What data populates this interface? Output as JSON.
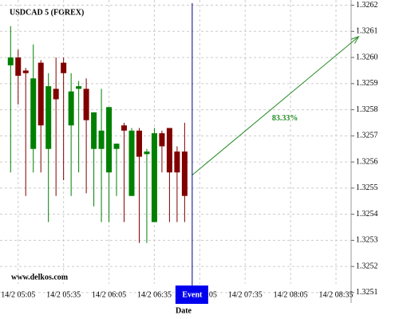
{
  "chart_data": {
    "type": "candlestick",
    "title": "USDCAD 5 (FOREX)",
    "watermark": "www.delkos.com",
    "x_label": "Date",
    "x": [
      "14/2 05:00",
      "14/2 05:05",
      "14/2 05:10",
      "14/2 05:15",
      "14/2 05:20",
      "14/2 05:25",
      "14/2 05:30",
      "14/2 05:35",
      "14/2 05:40",
      "14/2 05:45",
      "14/2 05:50",
      "14/2 05:55",
      "14/2 06:00",
      "14/2 06:05",
      "14/2 06:10",
      "14/2 06:15",
      "14/2 06:20",
      "14/2 06:25",
      "14/2 06:30",
      "14/2 06:35",
      "14/2 06:40",
      "14/2 06:45",
      "14/2 06:50",
      "14/2 06:55"
    ],
    "open": [
      1.32597,
      1.326,
      1.32595,
      1.32565,
      1.32598,
      1.32565,
      1.32588,
      1.32598,
      1.32574,
      1.32588,
      1.32588,
      1.32565,
      1.32565,
      1.32556,
      1.32565,
      1.32574,
      1.32547,
      1.32572,
      1.32563,
      1.32537,
      1.32571,
      1.32573,
      1.32564,
      1.32564
    ],
    "high": [
      1.32612,
      1.32603,
      1.32596,
      1.32605,
      1.32599,
      1.32594,
      1.326,
      1.326,
      1.32594,
      1.32591,
      1.32592,
      1.32579,
      1.32588,
      1.32581,
      1.32567,
      1.32575,
      1.32573,
      1.32573,
      1.32565,
      1.32573,
      1.32572,
      1.32573,
      1.32566,
      1.32575
    ],
    "low": [
      1.32556,
      1.32582,
      1.32547,
      1.32556,
      1.32556,
      1.32537,
      1.32547,
      1.32553,
      1.32547,
      1.32556,
      1.32548,
      1.32543,
      1.32537,
      1.32537,
      1.32547,
      1.32537,
      1.32547,
      1.32529,
      1.32529,
      1.32537,
      1.32556,
      1.32537,
      1.32537,
      1.32537
    ],
    "close": [
      1.326,
      1.32593,
      1.32594,
      1.32592,
      1.32574,
      1.32589,
      1.32584,
      1.32594,
      1.32587,
      1.32589,
      1.32576,
      1.32579,
      1.32572,
      1.32581,
      1.32567,
      1.32572,
      1.32572,
      1.32562,
      1.32564,
      1.32571,
      1.32566,
      1.32556,
      1.32556,
      1.32547
    ],
    "up_color": "#008000",
    "down_color": "#800000",
    "xlim": [
      "14/2 04:53",
      "14/2 08:45"
    ],
    "xticks": [
      "14/2 05:05",
      "14/2 05:35",
      "14/2 06:05",
      "14/2 06:35",
      "14/2 07:05",
      "14/2 07:35",
      "14/2 08:05",
      "14/2 08:35"
    ],
    "ylim": [
      1.32506,
      1.32622
    ],
    "yticks": [
      1.3251,
      1.3252,
      1.3253,
      1.3254,
      1.3255,
      1.3256,
      1.3257,
      1.3258,
      1.3259,
      1.326,
      1.3261,
      1.3262
    ],
    "yticks_text": [
      "1.3251",
      "1.3252",
      "1.3253",
      "1.3254",
      "1.3255",
      "1.3256",
      "1.3257",
      "1.3258",
      "1.3259",
      "1.3260",
      "1.3261",
      "1.3262"
    ],
    "grid": true,
    "event": {
      "x": "14/2 07:00",
      "label": "Event",
      "color": "#0000ee"
    },
    "projection": {
      "x": [
        "14/2 07:00",
        "14/2 08:50"
      ],
      "values": [
        1.32555,
        1.32608
      ],
      "label": "83.33%",
      "color": "#228b22"
    }
  }
}
